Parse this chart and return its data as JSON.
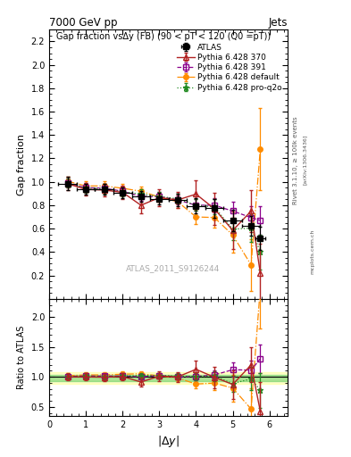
{
  "title_top": "7000 GeV pp",
  "title_right": "Jets",
  "main_title": "Gap fraction vsΔy (FB) (90 < pT < 120 (Q0 =̅pT))",
  "watermark": "ATLAS_2011_S9126244",
  "right_label": "Rivet 3.1.10, ≥ 100k events",
  "arxiv_label": "[arXiv:1306.3436]",
  "mcplots_label": "mcplots.cern.ch",
  "atlas_x": [
    0.5,
    1.0,
    1.5,
    2.0,
    2.5,
    3.0,
    3.5,
    4.0,
    4.5,
    5.0,
    5.5,
    5.75
  ],
  "atlas_y": [
    0.985,
    0.935,
    0.935,
    0.905,
    0.875,
    0.855,
    0.845,
    0.795,
    0.775,
    0.67,
    0.625,
    0.515
  ],
  "atlas_yerr_lo": [
    0.055,
    0.045,
    0.045,
    0.045,
    0.045,
    0.05,
    0.055,
    0.065,
    0.08,
    0.09,
    0.085,
    0.1
  ],
  "atlas_yerr_hi": [
    0.055,
    0.045,
    0.045,
    0.045,
    0.045,
    0.05,
    0.055,
    0.065,
    0.08,
    0.09,
    0.085,
    0.1
  ],
  "atlas_xerr": [
    0.25,
    0.25,
    0.25,
    0.25,
    0.25,
    0.25,
    0.25,
    0.25,
    0.25,
    0.25,
    0.25,
    0.125
  ],
  "py370_x": [
    0.5,
    1.0,
    1.5,
    2.0,
    2.5,
    3.0,
    3.5,
    4.0,
    4.5,
    5.0,
    5.5,
    5.75
  ],
  "py370_y": [
    0.985,
    0.935,
    0.93,
    0.91,
    0.8,
    0.865,
    0.845,
    0.895,
    0.77,
    0.585,
    0.75,
    0.22
  ],
  "py370_yerr": [
    0.055,
    0.055,
    0.055,
    0.055,
    0.07,
    0.07,
    0.07,
    0.12,
    0.14,
    0.16,
    0.18,
    0.25
  ],
  "py370_color": "#b22222",
  "py370_linestyle": "-",
  "py391_x": [
    0.5,
    1.0,
    1.5,
    2.0,
    2.5,
    3.0,
    3.5,
    4.0,
    4.5,
    5.0,
    5.5,
    5.75
  ],
  "py391_y": [
    0.99,
    0.95,
    0.945,
    0.92,
    0.875,
    0.875,
    0.845,
    0.8,
    0.8,
    0.75,
    0.695,
    0.67
  ],
  "py391_yerr": [
    0.04,
    0.04,
    0.04,
    0.04,
    0.04,
    0.04,
    0.04,
    0.05,
    0.06,
    0.08,
    0.1,
    0.12
  ],
  "py391_color": "#8b008b",
  "py391_linestyle": "--",
  "pydef_x": [
    0.5,
    1.0,
    1.5,
    2.0,
    2.5,
    3.0,
    3.5,
    4.0,
    4.5,
    5.0,
    5.5,
    5.75
  ],
  "pydef_y": [
    1.005,
    0.965,
    0.965,
    0.945,
    0.92,
    0.87,
    0.83,
    0.7,
    0.695,
    0.545,
    0.29,
    1.28
  ],
  "pydef_yerr": [
    0.04,
    0.04,
    0.04,
    0.04,
    0.04,
    0.04,
    0.05,
    0.06,
    0.09,
    0.15,
    0.22,
    0.35
  ],
  "pydef_color": "#ff8c00",
  "pydef_linestyle": "-.",
  "pyproq2o_x": [
    0.5,
    1.0,
    1.5,
    2.0,
    2.5,
    3.0,
    3.5,
    4.0,
    4.5,
    5.0,
    5.5,
    5.75
  ],
  "pyproq2o_y": [
    0.99,
    0.945,
    0.94,
    0.915,
    0.895,
    0.875,
    0.855,
    0.8,
    0.785,
    0.595,
    0.605,
    0.4
  ],
  "pyproq2o_yerr": [
    0.04,
    0.04,
    0.04,
    0.04,
    0.04,
    0.04,
    0.04,
    0.05,
    0.065,
    0.09,
    0.12,
    0.15
  ],
  "pyproq2o_color": "#228b22",
  "pyproq2o_linestyle": ":",
  "xlim": [
    0,
    6.5
  ],
  "ylim_main": [
    0.0,
    2.3
  ],
  "ylim_ratio": [
    0.35,
    2.3
  ],
  "yticks_main": [
    0.2,
    0.4,
    0.6,
    0.8,
    1.0,
    1.2,
    1.4,
    1.6,
    1.8,
    2.0,
    2.2
  ],
  "yticks_ratio": [
    0.5,
    1.0,
    1.5,
    2.0
  ],
  "xticks": [
    0,
    1,
    2,
    3,
    4,
    5,
    6
  ],
  "band_green_lo": 0.93,
  "band_green_hi": 1.03,
  "band_yellow_lo": 0.88,
  "band_yellow_hi": 1.08
}
